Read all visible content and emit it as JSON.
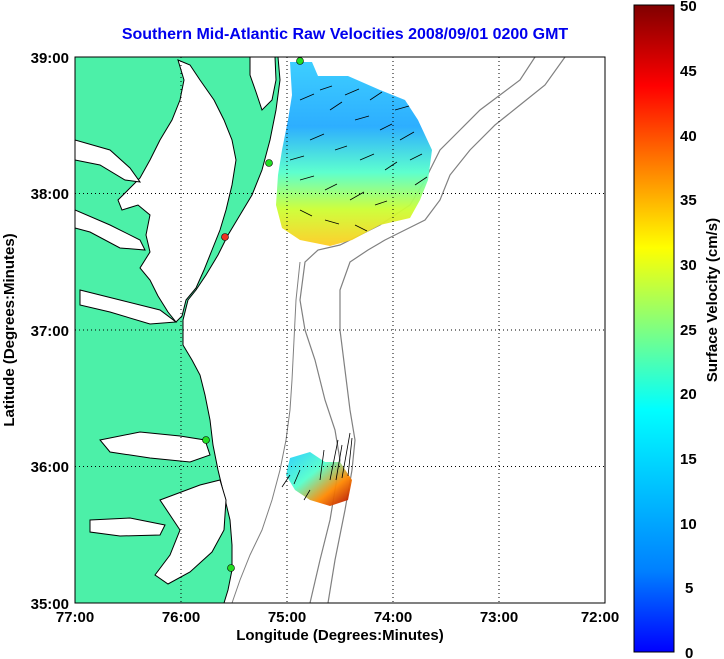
{
  "title": "Southern Mid-Atlantic Raw Velocities 2008/09/01 0200 GMT",
  "xlabel": "Longitude (Degrees:Minutes)",
  "ylabel": "Latitude (Degrees:Minutes)",
  "x_ticks": [
    "77:00",
    "76:00",
    "75:00",
    "74:00",
    "73:00",
    "72:00"
  ],
  "y_ticks": [
    "39:00",
    "38:00",
    "37:00",
    "36:00",
    "35:00"
  ],
  "colorbar": {
    "label": "Surface Velocity (cm/s)",
    "ticks": [
      "50",
      "45",
      "40",
      "35",
      "30",
      "25",
      "20",
      "15",
      "10",
      "5",
      "0"
    ],
    "colormap": "jet",
    "range": [
      0,
      50
    ]
  },
  "colors": {
    "land": "#4cf0a8",
    "water": "#ffffff",
    "coastline": "#000000",
    "bathymetry": "#808080",
    "title": "#0000ee",
    "station_active": "#22dd22",
    "station_inactive": "#ee3322"
  },
  "map": {
    "lon_range": [
      -77,
      -72
    ],
    "lat_range": [
      35,
      39
    ],
    "grid": true,
    "stations": [
      {
        "lon": -74.9,
        "lat": 38.98,
        "status": "active"
      },
      {
        "lon": -75.1,
        "lat": 38.2,
        "status": "active"
      },
      {
        "lon": -75.5,
        "lat": 37.7,
        "status": "inactive"
      },
      {
        "lon": -75.7,
        "lat": 36.2,
        "status": "active"
      },
      {
        "lon": -75.5,
        "lat": 35.25,
        "status": "active"
      }
    ]
  }
}
